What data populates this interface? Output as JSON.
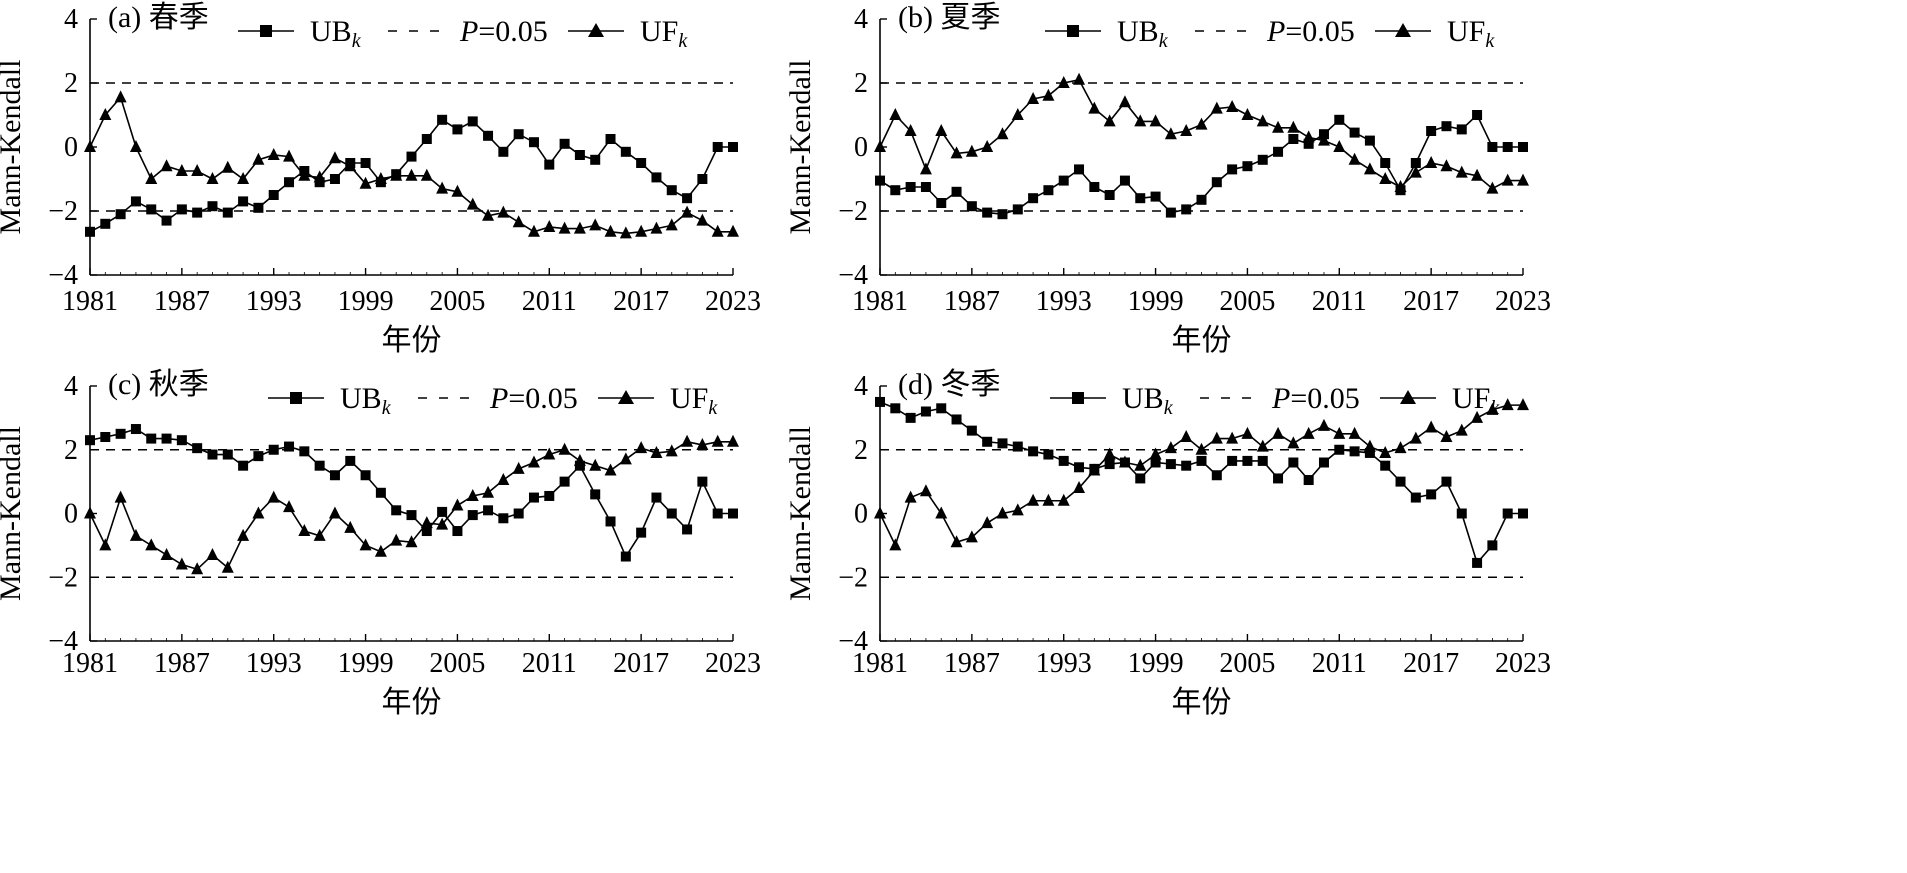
{
  "figure": {
    "panel_count": 4
  },
  "chart_data": [
    {
      "type": "line",
      "title": "(a) 春季",
      "xlabel": "年份",
      "ylabel": "Mann-Kendall",
      "xlim": [
        1981,
        2023
      ],
      "ylim": [
        -4,
        4
      ],
      "x_ticks": [
        "1981",
        "1987",
        "1993",
        "1999",
        "2005",
        "2011",
        "2017",
        "2023"
      ],
      "y_ticks": [
        "−4",
        "−2",
        "0",
        "2",
        "4"
      ],
      "grid": false,
      "legend": {
        "placement": "top",
        "items": [
          {
            "label": "UB",
            "sub": "k",
            "marker": "square"
          },
          {
            "label": "P",
            "suffix": "=0.05",
            "marker": "dashed"
          },
          {
            "label": "UF",
            "sub": "k",
            "marker": "triangle"
          }
        ]
      },
      "threshold": [
        2,
        -2
      ],
      "x": [
        1981,
        1982,
        1983,
        1984,
        1985,
        1986,
        1987,
        1988,
        1989,
        1990,
        1991,
        1992,
        1993,
        1994,
        1995,
        1996,
        1997,
        1998,
        1999,
        2000,
        2001,
        2002,
        2003,
        2004,
        2005,
        2006,
        2007,
        2008,
        2009,
        2010,
        2011,
        2012,
        2013,
        2014,
        2015,
        2016,
        2017,
        2018,
        2019,
        2020,
        2021,
        2022,
        2023
      ],
      "series": [
        {
          "name": "UBk",
          "marker": "square",
          "values": [
            -2.65,
            -2.4,
            -2.1,
            -1.7,
            -1.95,
            -2.3,
            -1.95,
            -2.05,
            -1.85,
            -2.05,
            -1.7,
            -1.9,
            -1.5,
            -1.1,
            -0.75,
            -1.1,
            -1.0,
            -0.5,
            -0.5,
            -1.1,
            -0.85,
            -0.3,
            0.25,
            0.85,
            0.55,
            0.8,
            0.35,
            -0.15,
            0.4,
            0.15,
            -0.55,
            0.1,
            -0.25,
            -0.4,
            0.25,
            -0.15,
            -0.5,
            -0.95,
            -1.35,
            -1.6,
            -1.0,
            0.0,
            0.0
          ]
        },
        {
          "name": "UFk",
          "marker": "triangle",
          "values": [
            0.0,
            1.0,
            1.55,
            0.0,
            -1.0,
            -0.6,
            -0.75,
            -0.75,
            -1.0,
            -0.65,
            -1.0,
            -0.4,
            -0.25,
            -0.3,
            -0.9,
            -0.95,
            -0.35,
            -0.6,
            -1.15,
            -1.0,
            -0.9,
            -0.9,
            -0.9,
            -1.3,
            -1.4,
            -1.8,
            -2.15,
            -2.05,
            -2.35,
            -2.65,
            -2.5,
            -2.55,
            -2.55,
            -2.45,
            -2.65,
            -2.7,
            -2.65,
            -2.55,
            -2.45,
            -2.05,
            -2.3,
            -2.65,
            -2.65
          ]
        }
      ]
    },
    {
      "type": "line",
      "title": "(b) 夏季",
      "xlabel": "年份",
      "ylabel": "Mann-Kendall",
      "xlim": [
        1981,
        2023
      ],
      "ylim": [
        -4,
        4
      ],
      "x_ticks": [
        "1981",
        "1987",
        "1993",
        "1999",
        "2005",
        "2011",
        "2017",
        "2023"
      ],
      "y_ticks": [
        "−4",
        "−2",
        "0",
        "2",
        "4"
      ],
      "grid": false,
      "legend": {
        "placement": "top",
        "items": [
          {
            "label": "UB",
            "sub": "k",
            "marker": "square"
          },
          {
            "label": "P",
            "suffix": "=0.05",
            "marker": "dashed"
          },
          {
            "label": "UF",
            "sub": "k",
            "marker": "triangle"
          }
        ]
      },
      "threshold": [
        2,
        -2
      ],
      "x": [
        1981,
        1982,
        1983,
        1984,
        1985,
        1986,
        1987,
        1988,
        1989,
        1990,
        1991,
        1992,
        1993,
        1994,
        1995,
        1996,
        1997,
        1998,
        1999,
        2000,
        2001,
        2002,
        2003,
        2004,
        2005,
        2006,
        2007,
        2008,
        2009,
        2010,
        2011,
        2012,
        2013,
        2014,
        2015,
        2016,
        2017,
        2018,
        2019,
        2020,
        2021,
        2022,
        2023
      ],
      "series": [
        {
          "name": "UBk",
          "marker": "square",
          "values": [
            -1.05,
            -1.35,
            -1.25,
            -1.25,
            -1.75,
            -1.4,
            -1.85,
            -2.05,
            -2.1,
            -1.95,
            -1.6,
            -1.35,
            -1.05,
            -0.7,
            -1.25,
            -1.5,
            -1.05,
            -1.6,
            -1.55,
            -2.05,
            -1.95,
            -1.65,
            -1.1,
            -0.7,
            -0.6,
            -0.4,
            -0.15,
            0.25,
            0.1,
            0.4,
            0.85,
            0.45,
            0.2,
            -0.5,
            -1.35,
            -0.5,
            0.5,
            0.65,
            0.55,
            1.0,
            0.0,
            0.0,
            0.0
          ]
        },
        {
          "name": "UFk",
          "marker": "triangle",
          "values": [
            0.0,
            1.0,
            0.5,
            -0.7,
            0.5,
            -0.2,
            -0.15,
            0.0,
            0.4,
            1.0,
            1.5,
            1.6,
            2.0,
            2.1,
            1.2,
            0.8,
            1.4,
            0.8,
            0.8,
            0.4,
            0.5,
            0.7,
            1.2,
            1.25,
            1.0,
            0.8,
            0.6,
            0.6,
            0.3,
            0.2,
            0.0,
            -0.4,
            -0.7,
            -1.0,
            -1.25,
            -0.8,
            -0.5,
            -0.6,
            -0.8,
            -0.9,
            -1.3,
            -1.05,
            -1.05
          ]
        }
      ]
    },
    {
      "type": "line",
      "title": "(c) 秋季",
      "xlabel": "年份",
      "ylabel": "Mann-Kendall",
      "xlim": [
        1981,
        2023
      ],
      "ylim": [
        -4,
        4
      ],
      "x_ticks": [
        "1981",
        "1987",
        "1993",
        "1999",
        "2005",
        "2011",
        "2017",
        "2023"
      ],
      "y_ticks": [
        "−4",
        "−2",
        "0",
        "2",
        "4"
      ],
      "grid": false,
      "legend": {
        "placement": "top",
        "items": [
          {
            "label": "UB",
            "sub": "k",
            "marker": "square"
          },
          {
            "label": "P",
            "suffix": "=0.05",
            "marker": "dashed"
          },
          {
            "label": "UF",
            "sub": "k",
            "marker": "triangle"
          }
        ]
      },
      "threshold": [
        2,
        -2
      ],
      "x": [
        1981,
        1982,
        1983,
        1984,
        1985,
        1986,
        1987,
        1988,
        1989,
        1990,
        1991,
        1992,
        1993,
        1994,
        1995,
        1996,
        1997,
        1998,
        1999,
        2000,
        2001,
        2002,
        2003,
        2004,
        2005,
        2006,
        2007,
        2008,
        2009,
        2010,
        2011,
        2012,
        2013,
        2014,
        2015,
        2016,
        2017,
        2018,
        2019,
        2020,
        2021,
        2022,
        2023
      ],
      "series": [
        {
          "name": "UBk",
          "marker": "square",
          "values": [
            2.3,
            2.4,
            2.5,
            2.65,
            2.35,
            2.35,
            2.3,
            2.05,
            1.85,
            1.85,
            1.5,
            1.8,
            2.0,
            2.1,
            1.95,
            1.5,
            1.2,
            1.65,
            1.2,
            0.65,
            0.1,
            -0.05,
            -0.55,
            0.05,
            -0.55,
            -0.05,
            0.1,
            -0.15,
            0.0,
            0.5,
            0.55,
            1.0,
            1.5,
            0.6,
            -0.25,
            -1.35,
            -0.6,
            0.5,
            0.0,
            -0.5,
            1.0,
            0.0,
            0.0
          ]
        },
        {
          "name": "UFk",
          "marker": "triangle",
          "values": [
            0.0,
            -1.0,
            0.5,
            -0.7,
            -1.0,
            -1.3,
            -1.6,
            -1.75,
            -1.3,
            -1.7,
            -0.7,
            0.0,
            0.5,
            0.2,
            -0.55,
            -0.7,
            0.0,
            -0.45,
            -1.0,
            -1.2,
            -0.85,
            -0.9,
            -0.3,
            -0.35,
            0.25,
            0.55,
            0.65,
            1.05,
            1.4,
            1.6,
            1.85,
            2.0,
            1.65,
            1.5,
            1.35,
            1.7,
            2.05,
            1.9,
            1.95,
            2.25,
            2.15,
            2.25,
            2.25
          ]
        }
      ]
    },
    {
      "type": "line",
      "title": "(d) 冬季",
      "xlabel": "年份",
      "ylabel": "Mann-Kendall",
      "xlim": [
        1981,
        2023
      ],
      "ylim": [
        -4,
        4
      ],
      "x_ticks": [
        "1981",
        "1987",
        "1993",
        "1999",
        "2005",
        "2011",
        "2017",
        "2023"
      ],
      "y_ticks": [
        "−4",
        "−2",
        "0",
        "2",
        "4"
      ],
      "grid": false,
      "legend": {
        "placement": "top",
        "items": [
          {
            "label": "UB",
            "sub": "k",
            "marker": "square"
          },
          {
            "label": "P",
            "suffix": "=0.05",
            "marker": "dashed"
          },
          {
            "label": "UF",
            "sub": "k",
            "marker": "triangle"
          }
        ]
      },
      "threshold": [
        2,
        -2
      ],
      "x": [
        1981,
        1982,
        1983,
        1984,
        1985,
        1986,
        1987,
        1988,
        1989,
        1990,
        1991,
        1992,
        1993,
        1994,
        1995,
        1996,
        1997,
        1998,
        1999,
        2000,
        2001,
        2002,
        2003,
        2004,
        2005,
        2006,
        2007,
        2008,
        2009,
        2010,
        2011,
        2012,
        2013,
        2014,
        2015,
        2016,
        2017,
        2018,
        2019,
        2020,
        2021,
        2022,
        2023
      ],
      "series": [
        {
          "name": "UBk",
          "marker": "square",
          "values": [
            3.5,
            3.3,
            3.0,
            3.2,
            3.3,
            2.95,
            2.6,
            2.25,
            2.2,
            2.1,
            1.95,
            1.85,
            1.65,
            1.45,
            1.4,
            1.55,
            1.6,
            1.1,
            1.6,
            1.55,
            1.5,
            1.65,
            1.2,
            1.65,
            1.65,
            1.65,
            1.1,
            1.6,
            1.05,
            1.6,
            2.0,
            1.95,
            1.9,
            1.5,
            1.0,
            0.5,
            0.6,
            1.0,
            0.0,
            -1.55,
            -1.0,
            0.0,
            0.0
          ]
        },
        {
          "name": "UFk",
          "marker": "triangle",
          "values": [
            0.0,
            -1.0,
            0.5,
            0.7,
            0.0,
            -0.9,
            -0.75,
            -0.3,
            0.0,
            0.1,
            0.4,
            0.4,
            0.4,
            0.8,
            1.35,
            1.85,
            1.6,
            1.5,
            1.85,
            2.05,
            2.4,
            2.0,
            2.35,
            2.35,
            2.5,
            2.1,
            2.5,
            2.2,
            2.5,
            2.75,
            2.5,
            2.5,
            2.1,
            1.9,
            2.05,
            2.35,
            2.7,
            2.4,
            2.6,
            3.0,
            3.25,
            3.4,
            3.4
          ]
        }
      ]
    }
  ]
}
